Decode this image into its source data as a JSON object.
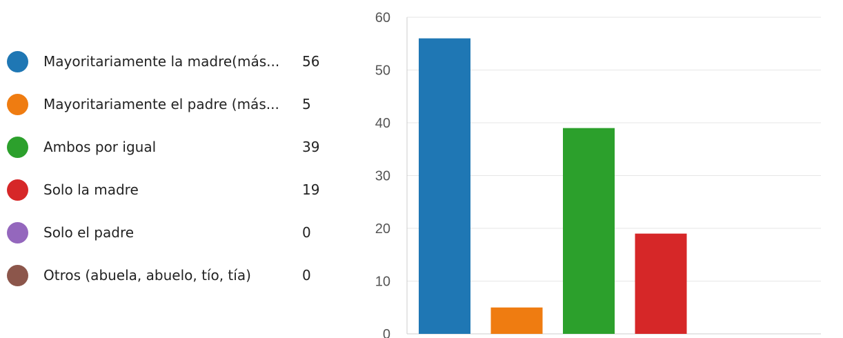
{
  "legend": {
    "items": [
      {
        "label": "Mayoritariamente la madre(más...",
        "count": "56",
        "color": "#1f77b4"
      },
      {
        "label": "Mayoritariamente el padre (más...",
        "count": "5",
        "color": "#ef7c11"
      },
      {
        "label": "Ambos por igual",
        "count": "39",
        "color": "#2ca02c"
      },
      {
        "label": "Solo la madre",
        "count": "19",
        "color": "#d62728"
      },
      {
        "label": "Solo el padre",
        "count": "0",
        "color": "#9467bd"
      },
      {
        "label": "Otros (abuela, abuelo, tío, tía)",
        "count": "0",
        "color": "#8c564b"
      }
    ]
  },
  "chart_data": {
    "type": "bar",
    "categories": [
      "Mayoritariamente la madre(más...",
      "Mayoritariamente el padre (más...",
      "Ambos por igual",
      "Solo la madre",
      "Solo el padre",
      "Otros (abuela, abuelo, tío, tía)"
    ],
    "values": [
      56,
      5,
      39,
      19,
      0,
      0
    ],
    "colors": [
      "#1f77b4",
      "#ef7c11",
      "#2ca02c",
      "#d62728",
      "#9467bd",
      "#8c564b"
    ],
    "ylim": [
      0,
      60
    ],
    "yticks": [
      "0",
      "10",
      "20",
      "30",
      "40",
      "50",
      "60"
    ],
    "grid": true,
    "legend_position": "left"
  }
}
